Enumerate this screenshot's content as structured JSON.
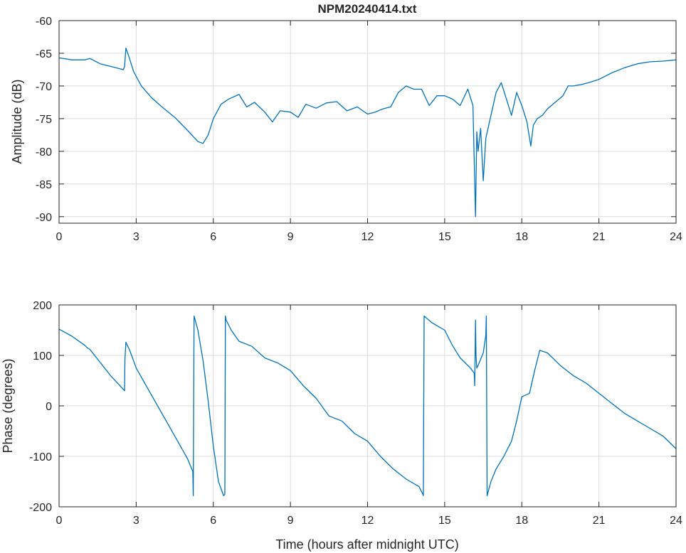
{
  "chart_data": [
    {
      "type": "line",
      "title": "NPM20240414.txt",
      "xlabel": "",
      "ylabel": "Amplitude (dB)",
      "xlim": [
        0,
        24
      ],
      "ylim": [
        -91,
        -60
      ],
      "xticks": [
        0,
        3,
        6,
        9,
        12,
        15,
        18,
        21,
        24
      ],
      "yticks": [
        -90,
        -85,
        -80,
        -75,
        -70,
        -65,
        -60
      ],
      "grid": true,
      "color": "#0072bd",
      "series": [
        {
          "x": [
            0,
            0.5,
            1.0,
            1.2,
            1.6,
            2.0,
            2.5,
            2.55,
            2.6,
            2.7,
            2.9,
            3.2,
            3.6,
            4.0,
            4.5,
            5.0,
            5.4,
            5.6,
            5.8,
            6.0,
            6.3,
            6.6,
            7.0,
            7.3,
            7.6,
            8.0,
            8.3,
            8.6,
            9.0,
            9.3,
            9.6,
            10.0,
            10.4,
            10.8,
            11.2,
            11.6,
            12.0,
            12.3,
            12.6,
            12.9,
            13.2,
            13.5,
            13.8,
            14.1,
            14.4,
            14.7,
            15.0,
            15.3,
            15.6,
            15.9,
            16.1,
            16.2,
            16.25,
            16.3,
            16.4,
            16.5,
            16.6,
            16.8,
            17.0,
            17.2,
            17.4,
            17.6,
            17.8,
            18.0,
            18.2,
            18.35,
            18.45,
            18.6,
            18.8,
            19.0,
            19.3,
            19.6,
            19.8,
            20.0,
            20.3,
            20.6,
            21.0,
            21.5,
            22.0,
            22.5,
            23.0,
            23.5,
            24.0
          ],
          "values": [
            -65.7,
            -66.0,
            -66.0,
            -65.8,
            -66.6,
            -67.0,
            -67.5,
            -67.0,
            -64.2,
            -65.3,
            -67.8,
            -70.0,
            -71.8,
            -73.2,
            -74.8,
            -76.8,
            -78.5,
            -78.8,
            -77.5,
            -75.0,
            -72.8,
            -72.0,
            -71.3,
            -73.2,
            -72.5,
            -74.0,
            -75.5,
            -73.8,
            -74.0,
            -74.8,
            -72.8,
            -73.4,
            -72.6,
            -72.4,
            -73.8,
            -73.2,
            -74.3,
            -74.0,
            -73.5,
            -73.2,
            -71.0,
            -70.0,
            -70.5,
            -70.5,
            -73.0,
            -71.5,
            -71.5,
            -72.0,
            -73.0,
            -70.5,
            -73.0,
            -90.0,
            -77.0,
            -80.0,
            -76.5,
            -84.5,
            -78.0,
            -74.5,
            -71.0,
            -69.5,
            -72.0,
            -74.5,
            -71.0,
            -73.0,
            -75.5,
            -79.2,
            -76.0,
            -75.0,
            -74.5,
            -73.5,
            -72.5,
            -71.5,
            -70.0,
            -70.0,
            -69.8,
            -69.5,
            -69.0,
            -68.0,
            -67.2,
            -66.6,
            -66.3,
            -66.2,
            -66.0
          ]
        }
      ]
    },
    {
      "type": "line",
      "title": "",
      "xlabel": "Time (hours after midnight UTC)",
      "ylabel": "Phase (degrees)",
      "xlim": [
        0,
        24
      ],
      "ylim": [
        -200,
        200
      ],
      "xticks": [
        0,
        3,
        6,
        9,
        12,
        15,
        18,
        21,
        24
      ],
      "yticks": [
        -200,
        -100,
        0,
        100,
        200
      ],
      "grid": true,
      "color": "#0072bd",
      "series": [
        {
          "x": [
            0,
            0.5,
            1.0,
            1.1,
            1.2,
            2.0,
            2.55,
            2.56,
            2.6,
            2.75,
            3.0,
            3.5,
            4.0,
            4.5,
            5.0,
            5.2,
            5.22,
            5.25,
            5.4,
            5.6,
            5.8,
            6.0,
            6.2,
            6.4,
            6.45,
            6.47,
            6.5,
            6.7,
            7.0,
            7.5,
            8.0,
            8.5,
            9.0,
            9.5,
            10.0,
            10.5,
            11.0,
            11.5,
            12.0,
            12.5,
            13.0,
            13.5,
            14.0,
            14.15,
            14.17,
            14.2,
            14.5,
            15.0,
            15.3,
            15.6,
            16.0,
            16.15,
            16.17,
            16.2,
            16.22,
            16.25,
            16.3,
            16.5,
            16.6,
            16.62,
            16.65,
            16.8,
            17.0,
            17.3,
            17.6,
            17.8,
            18.0,
            18.3,
            18.5,
            18.7,
            19.0,
            19.5,
            20.0,
            20.5,
            21.0,
            21.5,
            22.0,
            22.5,
            23.0,
            23.5,
            24.0
          ],
          "values": [
            152,
            138,
            120,
            115,
            112,
            60,
            30,
            90,
            126,
            110,
            75,
            30,
            -15,
            -60,
            -105,
            -130,
            -178,
            178,
            150,
            90,
            10,
            -80,
            -150,
            -178,
            -175,
            178,
            170,
            150,
            128,
            118,
            95,
            85,
            70,
            40,
            15,
            -20,
            -30,
            -55,
            -70,
            -100,
            -125,
            -145,
            -160,
            -175,
            -178,
            178,
            165,
            150,
            120,
            95,
            75,
            65,
            40,
            170,
            100,
            75,
            80,
            105,
            140,
            178,
            -178,
            -150,
            -125,
            -100,
            -70,
            -30,
            18,
            25,
            70,
            110,
            105,
            80,
            60,
            45,
            25,
            5,
            -15,
            -30,
            -45,
            -60,
            -85
          ]
        }
      ]
    }
  ]
}
